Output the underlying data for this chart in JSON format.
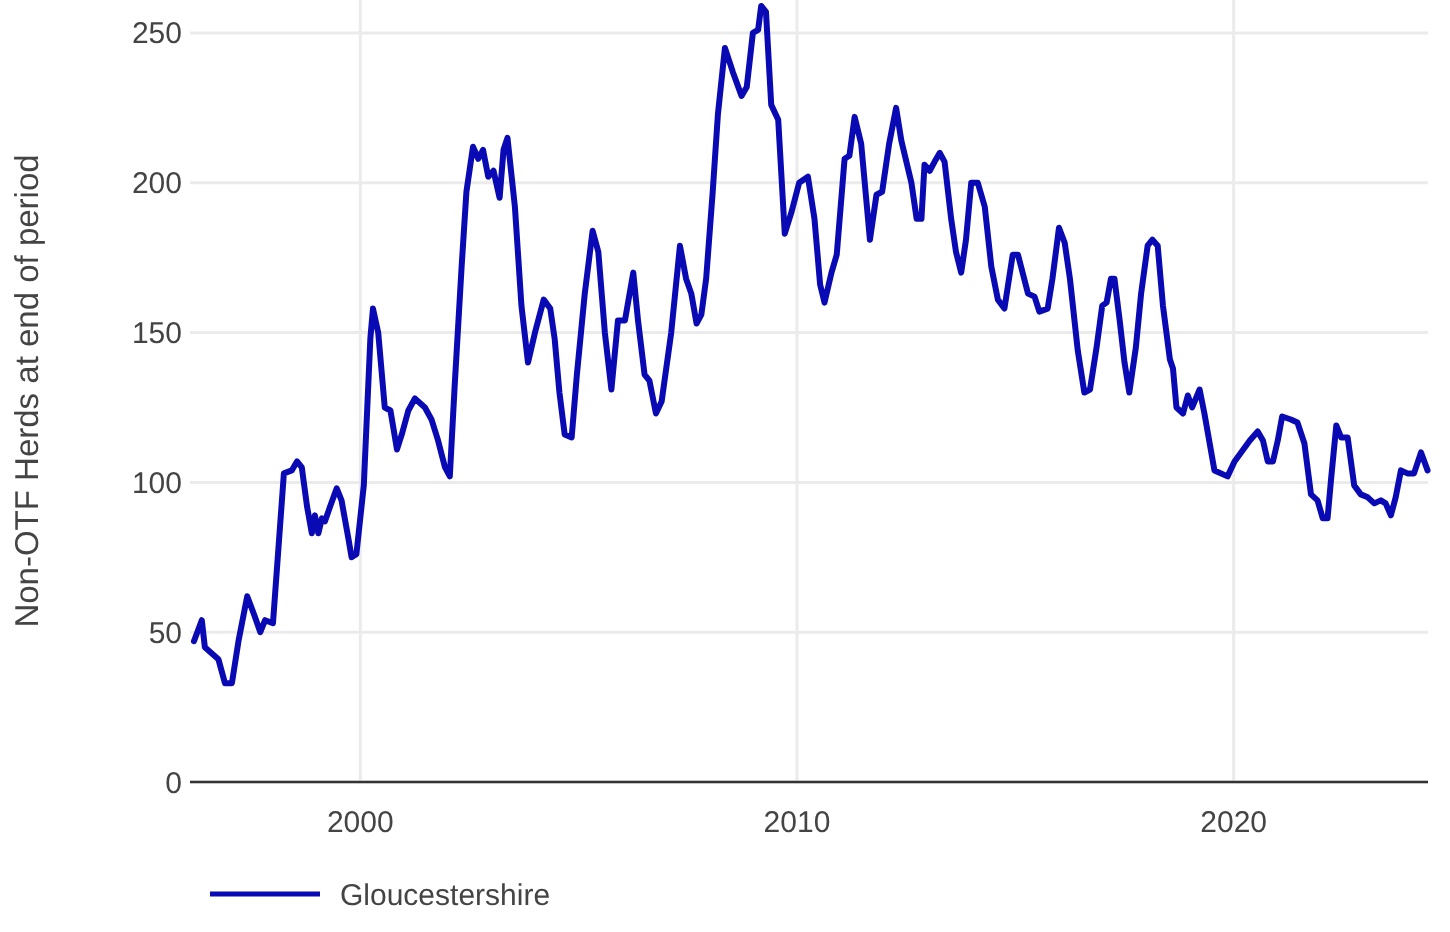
{
  "chart_data": {
    "type": "line",
    "ylabel": "Non-OTF Herds at end of period",
    "xlim": [
      1996.1,
      2024.45
    ],
    "xticks": [
      2000,
      2010,
      2020
    ],
    "ylim": [
      0,
      261
    ],
    "yticks": [
      0,
      50,
      100,
      150,
      200,
      250
    ],
    "grid": true,
    "legend": "bottom",
    "x": [
      1996.19,
      1996.37,
      1996.44,
      1996.75,
      1996.9,
      1997.06,
      1997.21,
      1997.41,
      1997.59,
      1997.71,
      1997.82,
      1998.0,
      1998.25,
      1998.43,
      1998.55,
      1998.66,
      1998.78,
      1998.89,
      1998.96,
      1999.04,
      1999.12,
      1999.19,
      1999.31,
      1999.46,
      1999.57,
      1999.73,
      1999.8,
      1999.91,
      2000.08,
      2000.23,
      2000.29,
      2000.41,
      2000.56,
      2000.69,
      2000.84,
      2000.95,
      2001.1,
      2001.25,
      2001.48,
      2001.63,
      2001.78,
      2001.94,
      2002.05,
      2002.16,
      2002.32,
      2002.43,
      2002.58,
      2002.7,
      2002.81,
      2002.93,
      2003.05,
      2003.19,
      2003.28,
      2003.37,
      2003.54,
      2003.69,
      2003.84,
      2004.0,
      2004.2,
      2004.35,
      2004.45,
      2004.56,
      2004.68,
      2004.84,
      2004.96,
      2005.14,
      2005.32,
      2005.45,
      2005.6,
      2005.75,
      2005.9,
      2006.06,
      2006.25,
      2006.36,
      2006.51,
      2006.62,
      2006.77,
      2006.9,
      2007.12,
      2007.32,
      2007.46,
      2007.58,
      2007.7,
      2007.81,
      2007.92,
      2008.07,
      2008.19,
      2008.35,
      2008.53,
      2008.73,
      2008.85,
      2008.99,
      2009.11,
      2009.18,
      2009.29,
      2009.41,
      2009.57,
      2009.72,
      2009.87,
      2010.05,
      2010.25,
      2010.4,
      2010.53,
      2010.63,
      2010.79,
      2010.91,
      2011.09,
      2011.2,
      2011.32,
      2011.47,
      2011.67,
      2011.82,
      2011.95,
      2012.11,
      2012.27,
      2012.39,
      2012.62,
      2012.74,
      2012.85,
      2012.92,
      2013.04,
      2013.15,
      2013.27,
      2013.38,
      2013.53,
      2013.64,
      2013.76,
      2013.87,
      2013.99,
      2014.14,
      2014.3,
      2014.45,
      2014.6,
      2014.75,
      2014.94,
      2015.06,
      2015.29,
      2015.44,
      2015.55,
      2015.74,
      2015.85,
      2016.0,
      2016.13,
      2016.25,
      2016.43,
      2016.58,
      2016.71,
      2016.86,
      2016.99,
      2017.09,
      2017.19,
      2017.27,
      2017.39,
      2017.5,
      2017.61,
      2017.76,
      2017.88,
      2018.03,
      2018.14,
      2018.26,
      2018.38,
      2018.54,
      2018.61,
      2018.69,
      2018.84,
      2018.95,
      2019.05,
      2019.22,
      2019.33,
      2019.56,
      2019.86,
      2020.02,
      2020.17,
      2020.37,
      2020.55,
      2020.67,
      2020.78,
      2020.9,
      2021.01,
      2021.11,
      2021.31,
      2021.46,
      2021.62,
      2021.77,
      2021.92,
      2022.04,
      2022.15,
      2022.23,
      2022.35,
      2022.46,
      2022.61,
      2022.76,
      2022.91,
      2023.07,
      2023.22,
      2023.37,
      2023.48,
      2023.6,
      2023.71,
      2023.83,
      2023.98,
      2024.13,
      2024.29,
      2024.44
    ],
    "series": [
      {
        "name": "Gloucestershire",
        "color": "#0a0ab4",
        "values": [
          47,
          54,
          45,
          41,
          33,
          33,
          47,
          62,
          55,
          50,
          54,
          53,
          103,
          104,
          107,
          105,
          92,
          83,
          89,
          83,
          88,
          87,
          92,
          98,
          94,
          81,
          75,
          76,
          99,
          148,
          158,
          150,
          125,
          124,
          111,
          116,
          124,
          128,
          125,
          121,
          114,
          105,
          102,
          132,
          172,
          197,
          212,
          208,
          211,
          202,
          204,
          195,
          211,
          215,
          192,
          159,
          140,
          150,
          161,
          158,
          148,
          130,
          116,
          115,
          136,
          163,
          184,
          177,
          150,
          131,
          154,
          154,
          170,
          154,
          136,
          134,
          123,
          127,
          150,
          179,
          168,
          163,
          153,
          156,
          168,
          197,
          223,
          245,
          237,
          229,
          232,
          250,
          251,
          259,
          257,
          226,
          221,
          183,
          190,
          200,
          202,
          188,
          166,
          160,
          170,
          176,
          208,
          209,
          222,
          213,
          181,
          196,
          197,
          213,
          225,
          214,
          200,
          188,
          188,
          206,
          204,
          207,
          210,
          207,
          188,
          177,
          170,
          181,
          200,
          200,
          192,
          172,
          161,
          158,
          176,
          176,
          163,
          162,
          157,
          158,
          168,
          185,
          180,
          168,
          144,
          130,
          131,
          145,
          159,
          160,
          168,
          168,
          154,
          140,
          130,
          145,
          163,
          179,
          181,
          179,
          159,
          141,
          138,
          125,
          123,
          129,
          125,
          131,
          123,
          104,
          102,
          107,
          110,
          114,
          117,
          114,
          107,
          107,
          114,
          122,
          121,
          120,
          113,
          96,
          94,
          88,
          88,
          101,
          119,
          115,
          115,
          99,
          96,
          95,
          93,
          94,
          93,
          89,
          95,
          104,
          103,
          103,
          110,
          104
        ]
      }
    ]
  }
}
